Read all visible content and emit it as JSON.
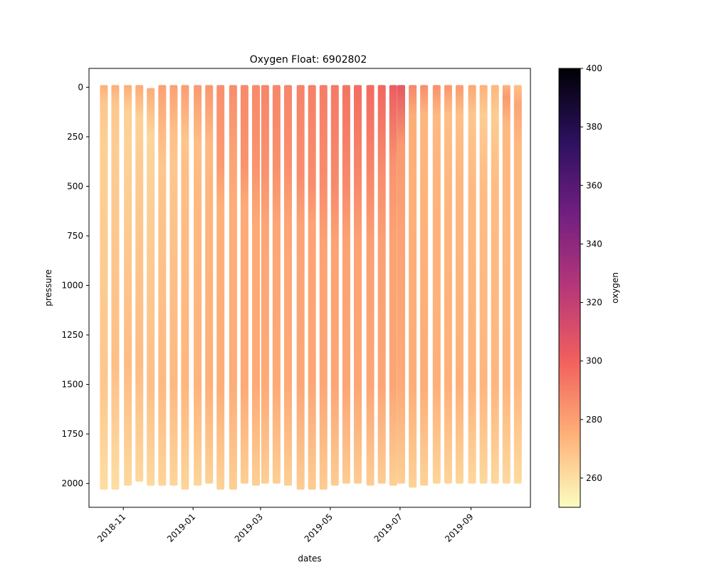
{
  "chart_data": {
    "type": "scatter",
    "title": "Oxygen Float: 6902802",
    "xlabel": "dates",
    "ylabel": "pressure",
    "y_inverted": true,
    "ylim": [
      2120,
      -95
    ],
    "xlim": [
      "2018-10-02",
      "2019-10-23"
    ],
    "x_ticks": [
      "2018-11",
      "2019-01",
      "2019-03",
      "2019-05",
      "2019-07",
      "2019-09"
    ],
    "y_ticks": [
      0,
      250,
      500,
      750,
      1000,
      1250,
      1500,
      1750,
      2000
    ],
    "colorbar": {
      "label": "oxygen",
      "range": [
        250,
        400
      ],
      "ticks": [
        260,
        280,
        300,
        320,
        340,
        360,
        380,
        400
      ],
      "colormap": "magma_r",
      "stops": [
        "#fcfdbf",
        "#feb078",
        "#f1605d",
        "#b73779",
        "#721f81",
        "#2c115f",
        "#000004"
      ]
    },
    "profiles": [
      {
        "date": "2018-10-15",
        "max_pressure": 2020,
        "oxygen": [
          [
            0,
            275
          ],
          [
            90,
            268
          ],
          [
            300,
            265
          ],
          [
            1500,
            268
          ],
          [
            2020,
            260
          ]
        ]
      },
      {
        "date": "2018-10-25",
        "max_pressure": 2020,
        "oxygen": [
          [
            0,
            276
          ],
          [
            90,
            268
          ],
          [
            300,
            266
          ],
          [
            1400,
            270
          ],
          [
            2020,
            260
          ]
        ]
      },
      {
        "date": "2018-11-05",
        "max_pressure": 2000,
        "oxygen": [
          [
            0,
            276
          ],
          [
            120,
            265
          ],
          [
            300,
            264
          ],
          [
            1400,
            271
          ],
          [
            2000,
            262
          ]
        ]
      },
      {
        "date": "2018-11-15",
        "max_pressure": 1980,
        "oxygen": [
          [
            0,
            277
          ],
          [
            170,
            264
          ],
          [
            400,
            266
          ],
          [
            1400,
            271
          ],
          [
            1980,
            262
          ]
        ]
      },
      {
        "date": "2018-11-25",
        "max_pressure": 2000,
        "oxygen": [
          [
            15,
            276
          ],
          [
            250,
            263
          ],
          [
            400,
            264
          ],
          [
            1500,
            270
          ],
          [
            2000,
            262
          ]
        ]
      },
      {
        "date": "2018-12-05",
        "max_pressure": 2000,
        "oxygen": [
          [
            0,
            280
          ],
          [
            230,
            272
          ],
          [
            400,
            268
          ],
          [
            1500,
            272
          ],
          [
            2000,
            263
          ]
        ]
      },
      {
        "date": "2018-12-15",
        "max_pressure": 2000,
        "oxygen": [
          [
            0,
            280
          ],
          [
            230,
            270
          ],
          [
            400,
            268
          ],
          [
            1500,
            272
          ],
          [
            2000,
            263
          ]
        ]
      },
      {
        "date": "2018-12-25",
        "max_pressure": 2020,
        "oxygen": [
          [
            0,
            281
          ],
          [
            280,
            268
          ],
          [
            400,
            270
          ],
          [
            1500,
            273
          ],
          [
            2020,
            263
          ]
        ]
      },
      {
        "date": "2019-01-05",
        "max_pressure": 2000,
        "oxygen": [
          [
            0,
            282
          ],
          [
            300,
            270
          ],
          [
            500,
            272
          ],
          [
            1500,
            274
          ],
          [
            2000,
            263
          ]
        ]
      },
      {
        "date": "2019-01-15",
        "max_pressure": 1990,
        "oxygen": [
          [
            0,
            283
          ],
          [
            290,
            272
          ],
          [
            500,
            273
          ],
          [
            1500,
            275
          ],
          [
            1990,
            264
          ]
        ]
      },
      {
        "date": "2019-01-25",
        "max_pressure": 2020,
        "oxygen": [
          [
            0,
            285
          ],
          [
            400,
            282
          ],
          [
            600,
            275
          ],
          [
            1500,
            276
          ],
          [
            2020,
            264
          ]
        ]
      },
      {
        "date": "2019-02-05",
        "max_pressure": 2020,
        "oxygen": [
          [
            0,
            286
          ],
          [
            300,
            280
          ],
          [
            600,
            276
          ],
          [
            1500,
            276
          ],
          [
            2020,
            265
          ]
        ]
      },
      {
        "date": "2019-02-15",
        "max_pressure": 1990,
        "oxygen": [
          [
            0,
            287
          ],
          [
            400,
            284
          ],
          [
            600,
            277
          ],
          [
            1500,
            277
          ],
          [
            1990,
            265
          ]
        ]
      },
      {
        "date": "2019-02-25",
        "max_pressure": 2000,
        "oxygen": [
          [
            0,
            287
          ],
          [
            400,
            284
          ],
          [
            700,
            277
          ],
          [
            1500,
            277
          ],
          [
            2000,
            265
          ]
        ]
      },
      {
        "date": "2019-03-05",
        "max_pressure": 1990,
        "oxygen": [
          [
            0,
            288
          ],
          [
            450,
            284
          ],
          [
            700,
            278
          ],
          [
            1500,
            277
          ],
          [
            1990,
            265
          ]
        ]
      },
      {
        "date": "2019-03-15",
        "max_pressure": 1990,
        "oxygen": [
          [
            0,
            288
          ],
          [
            400,
            285
          ],
          [
            700,
            278
          ],
          [
            1500,
            277
          ],
          [
            1990,
            265
          ]
        ]
      },
      {
        "date": "2019-03-25",
        "max_pressure": 2000,
        "oxygen": [
          [
            0,
            288
          ],
          [
            400,
            285
          ],
          [
            700,
            278
          ],
          [
            1500,
            277
          ],
          [
            2000,
            265
          ]
        ]
      },
      {
        "date": "2019-04-05",
        "max_pressure": 2020,
        "oxygen": [
          [
            0,
            289
          ],
          [
            450,
            286
          ],
          [
            700,
            279
          ],
          [
            1500,
            278
          ],
          [
            2020,
            266
          ]
        ]
      },
      {
        "date": "2019-04-15",
        "max_pressure": 2020,
        "oxygen": [
          [
            0,
            290
          ],
          [
            500,
            286
          ],
          [
            700,
            279
          ],
          [
            1500,
            278
          ],
          [
            2020,
            266
          ]
        ]
      },
      {
        "date": "2019-04-25",
        "max_pressure": 2020,
        "oxygen": [
          [
            0,
            291
          ],
          [
            500,
            286
          ],
          [
            800,
            279
          ],
          [
            1500,
            278
          ],
          [
            2020,
            266
          ]
        ]
      },
      {
        "date": "2019-05-05",
        "max_pressure": 2000,
        "oxygen": [
          [
            0,
            292
          ],
          [
            500,
            287
          ],
          [
            800,
            279
          ],
          [
            1500,
            278
          ],
          [
            2000,
            266
          ]
        ]
      },
      {
        "date": "2019-05-15",
        "max_pressure": 1990,
        "oxygen": [
          [
            0,
            294
          ],
          [
            500,
            287
          ],
          [
            800,
            279
          ],
          [
            1500,
            278
          ],
          [
            1990,
            266
          ]
        ]
      },
      {
        "date": "2019-05-25",
        "max_pressure": 1990,
        "oxygen": [
          [
            0,
            296
          ],
          [
            500,
            287
          ],
          [
            800,
            279
          ],
          [
            1500,
            278
          ],
          [
            1990,
            266
          ]
        ]
      },
      {
        "date": "2019-06-05",
        "max_pressure": 2000,
        "oxygen": [
          [
            0,
            297
          ],
          [
            500,
            287
          ],
          [
            800,
            280
          ],
          [
            1500,
            278
          ],
          [
            2000,
            266
          ]
        ]
      },
      {
        "date": "2019-06-15",
        "max_pressure": 1990,
        "oxygen": [
          [
            0,
            298
          ],
          [
            450,
            286
          ],
          [
            800,
            280
          ],
          [
            1500,
            278
          ],
          [
            1990,
            266
          ]
        ]
      },
      {
        "date": "2019-06-25",
        "max_pressure": 2000,
        "oxygen": [
          [
            0,
            302
          ],
          [
            400,
            284
          ],
          [
            800,
            279
          ],
          [
            1500,
            278
          ],
          [
            2000,
            265
          ]
        ]
      },
      {
        "date": "2019-07-02",
        "max_pressure": 1990,
        "oxygen": [
          [
            0,
            305
          ],
          [
            300,
            282
          ],
          [
            800,
            279
          ],
          [
            1500,
            277
          ],
          [
            1990,
            265
          ]
        ]
      },
      {
        "date": "2019-07-12",
        "max_pressure": 2010,
        "oxygen": [
          [
            0,
            288
          ],
          [
            150,
            276
          ],
          [
            500,
            275
          ],
          [
            1500,
            276
          ],
          [
            2010,
            264
          ]
        ]
      },
      {
        "date": "2019-07-22",
        "max_pressure": 2000,
        "oxygen": [
          [
            0,
            286
          ],
          [
            150,
            273
          ],
          [
            500,
            274
          ],
          [
            1500,
            276
          ],
          [
            2000,
            264
          ]
        ]
      },
      {
        "date": "2019-08-02",
        "max_pressure": 1990,
        "oxygen": [
          [
            0,
            285
          ],
          [
            150,
            272
          ],
          [
            500,
            274
          ],
          [
            1500,
            275
          ],
          [
            1990,
            263
          ]
        ]
      },
      {
        "date": "2019-08-12",
        "max_pressure": 1990,
        "oxygen": [
          [
            0,
            283
          ],
          [
            150,
            270
          ],
          [
            500,
            273
          ],
          [
            1500,
            275
          ],
          [
            1990,
            263
          ]
        ]
      },
      {
        "date": "2019-08-22",
        "max_pressure": 1990,
        "oxygen": [
          [
            0,
            282
          ],
          [
            150,
            270
          ],
          [
            500,
            273
          ],
          [
            1500,
            275
          ],
          [
            1990,
            263
          ]
        ]
      },
      {
        "date": "2019-09-02",
        "max_pressure": 1990,
        "oxygen": [
          [
            0,
            278
          ],
          [
            150,
            268
          ],
          [
            500,
            272
          ],
          [
            1500,
            274
          ],
          [
            1990,
            262
          ]
        ]
      },
      {
        "date": "2019-09-12",
        "max_pressure": 1990,
        "oxygen": [
          [
            0,
            275
          ],
          [
            150,
            266
          ],
          [
            500,
            271
          ],
          [
            1500,
            273
          ],
          [
            1990,
            262
          ]
        ]
      },
      {
        "date": "2019-09-22",
        "max_pressure": 1990,
        "oxygen": [
          [
            0,
            273
          ],
          [
            150,
            266
          ],
          [
            500,
            271
          ],
          [
            1500,
            273
          ],
          [
            1990,
            262
          ]
        ]
      },
      {
        "date": "2019-10-02",
        "max_pressure": 1990,
        "oxygen": [
          [
            0,
            274
          ],
          [
            60,
            282
          ],
          [
            200,
            272
          ],
          [
            1500,
            273
          ],
          [
            1990,
            262
          ]
        ]
      },
      {
        "date": "2019-10-12",
        "max_pressure": 1990,
        "oxygen": [
          [
            0,
            270
          ],
          [
            100,
            278
          ],
          [
            300,
            272
          ],
          [
            1500,
            272
          ],
          [
            1990,
            261
          ]
        ]
      }
    ]
  }
}
